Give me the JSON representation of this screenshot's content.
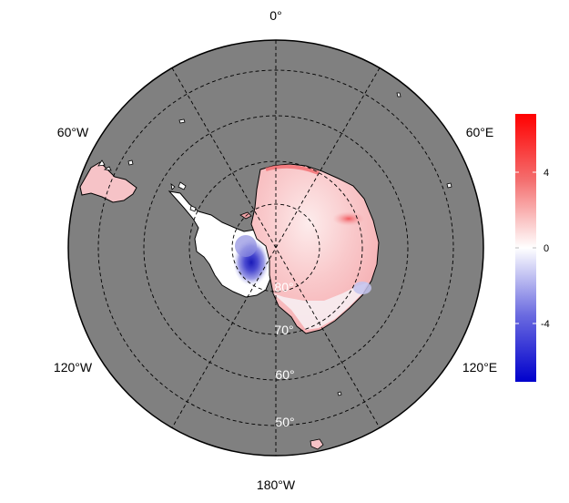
{
  "map": {
    "projection": "south-polar-stereographic",
    "background_color": "#808080",
    "land_outline_color": "#000000",
    "graticule_style": "dashed"
  },
  "longitude_labels": {
    "top": "0°",
    "upper_left": "60°W",
    "upper_right": "60°E",
    "lower_left": "120°W",
    "lower_right": "120°E",
    "bottom": "180°W"
  },
  "latitude_labels": {
    "lat80": "80°",
    "lat70": "70°",
    "lat60": "60°",
    "lat50": "50°"
  },
  "colorbar": {
    "colors": {
      "min": "#0000cc",
      "mid": "#ffffff",
      "max": "#ff0000"
    },
    "min_value": -6.5,
    "max_value": 6.5,
    "ticks": [
      "4",
      "0",
      "-4"
    ]
  }
}
